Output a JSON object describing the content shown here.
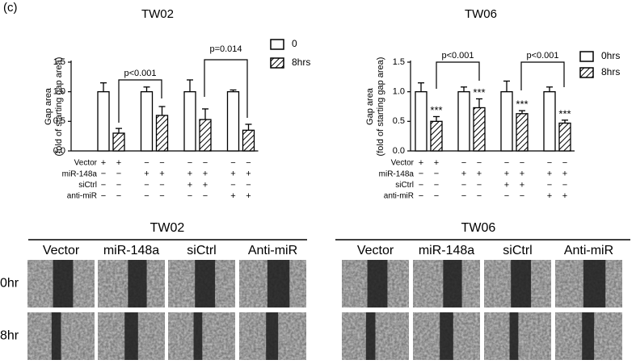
{
  "panel_label": "(c)",
  "chart_data": [
    {
      "type": "bar",
      "title": "TW02",
      "ylabel": [
        "Gap area",
        "(fold of starting gap area)"
      ],
      "ylim": [
        0,
        1.5
      ],
      "yticks": [
        {
          "value": 0,
          "label": "0.0"
        },
        0.5,
        {
          "value": 1,
          "label": "1.0"
        },
        1.5
      ],
      "series": [
        {
          "name": "0",
          "color": "#000000",
          "hatch": false,
          "values": [
            1.0,
            1.0,
            1.0,
            1.0
          ],
          "errors": [
            0.15,
            0.08,
            0.2,
            0.03
          ]
        },
        {
          "name": "8hrs",
          "color": "#000000",
          "hatch": true,
          "values": [
            0.3,
            0.6,
            0.53,
            0.35
          ],
          "errors": [
            0.08,
            0.15,
            0.18,
            0.1
          ]
        }
      ],
      "annotations": [
        "p<0.001",
        "p=0.014"
      ],
      "treatments": [
        {
          "label": "Vector",
          "signs": [
            "+",
            "+",
            "−",
            "−",
            "−",
            "−",
            "−",
            "−"
          ]
        },
        {
          "label": "miR-148a",
          "signs": [
            "−",
            "−",
            "+",
            "+",
            "+",
            "+",
            "+",
            "+"
          ]
        },
        {
          "label": "siCtrl",
          "signs": [
            "−",
            "−",
            "−",
            "−",
            "+",
            "+",
            "−",
            "−"
          ]
        },
        {
          "label": "anti-miR",
          "signs": [
            "−",
            "−",
            "−",
            "−",
            "−",
            "−",
            "+",
            "+"
          ]
        }
      ]
    },
    {
      "type": "bar",
      "title": "TW06",
      "ylabel": [
        "Gap area",
        "(fold of starting gap area)"
      ],
      "ylim": [
        0,
        1.5
      ],
      "yticks": [
        {
          "value": 0,
          "label": "0.0"
        },
        0.5,
        {
          "value": 1,
          "label": "1.0"
        },
        1.5
      ],
      "series": [
        {
          "name": "0hrs",
          "color": "#000000",
          "hatch": false,
          "values": [
            1.0,
            1.0,
            1.0,
            1.0
          ],
          "errors": [
            0.15,
            0.08,
            0.18,
            0.08
          ]
        },
        {
          "name": "8hrs",
          "color": "#000000",
          "hatch": true,
          "values": [
            0.5,
            0.73,
            0.63,
            0.47
          ],
          "errors": [
            0.08,
            0.15,
            0.05,
            0.05
          ],
          "markers": [
            "***",
            "***",
            "***",
            "***"
          ]
        }
      ],
      "annotations": [
        "p<0.001",
        "p<0.001"
      ],
      "treatments": [
        {
          "label": "Vector",
          "signs": [
            "+",
            "+",
            "−",
            "−",
            "−",
            "−",
            "−",
            "−"
          ]
        },
        {
          "label": "miR-148a",
          "signs": [
            "−",
            "−",
            "+",
            "+",
            "+",
            "+",
            "+",
            "+"
          ]
        },
        {
          "label": "siCtrl",
          "signs": [
            "−",
            "−",
            "−",
            "−",
            "+",
            "+",
            "−",
            "−"
          ]
        },
        {
          "label": "anti-miR",
          "signs": [
            "−",
            "−",
            "−",
            "−",
            "−",
            "−",
            "+",
            "+"
          ]
        }
      ]
    }
  ],
  "image_panels": [
    {
      "title": "TW02",
      "columns": [
        "Vector",
        "miR-148a",
        "siCtrl",
        "Anti-miR"
      ],
      "rows": [
        "0hr",
        "8hr"
      ]
    },
    {
      "title": "TW06",
      "columns": [
        "Vector",
        "miR-148a",
        "siCtrl",
        "Anti-miR"
      ],
      "rows": [
        "0hr",
        "8hr"
      ]
    }
  ]
}
